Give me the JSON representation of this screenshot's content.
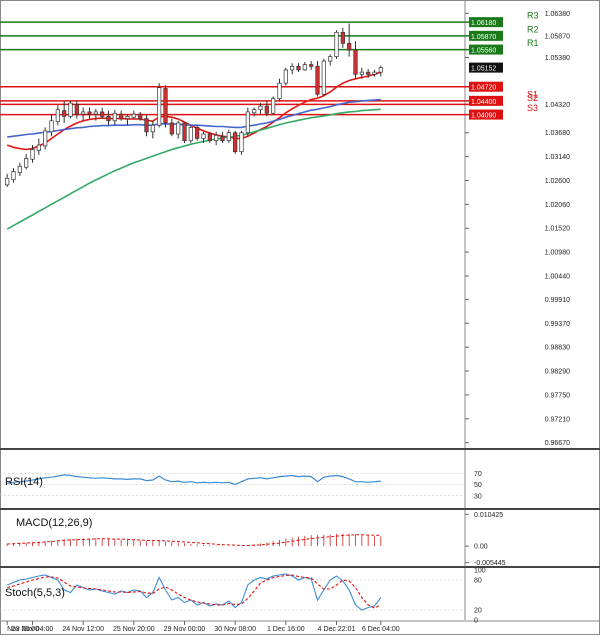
{
  "chart_data": [
    {
      "type": "candlestick",
      "panel": "price",
      "y_ticks": [
        "1.06380",
        "1.05870",
        "1.05380",
        "1.04320",
        "1.03680",
        "1.03140",
        "1.02600",
        "1.02060",
        "1.01520",
        "1.00980",
        "1.00440",
        "0.99910",
        "0.99370",
        "0.98830",
        "0.98290",
        "0.97750",
        "0.97210",
        "0.96670"
      ],
      "ylim": [
        0.9655,
        1.065
      ],
      "current_price": {
        "value": 1.05152,
        "label": "1.05152"
      },
      "pivots": [
        {
          "name": "R3",
          "value": 1.0618,
          "label": "1.06180",
          "color": "#1a7a1a"
        },
        {
          "name": "R2",
          "value": 1.0587,
          "label": "1.05870",
          "color": "#1a7a1a"
        },
        {
          "name": "R1",
          "value": 1.0556,
          "label": "1.05560",
          "color": "#1a7a1a"
        },
        {
          "name": "",
          "value": 1.0472,
          "label": "1.04720",
          "color": "#dd1111"
        },
        {
          "name": "S1",
          "value": 1.044,
          "label": "1.04400",
          "color": "#dd1111"
        },
        {
          "name": "S2",
          "value": 1.0432,
          "label": "",
          "color": "#dd1111"
        },
        {
          "name": "S3",
          "value": 1.0409,
          "label": "1.04090",
          "color": "#dd1111"
        }
      ],
      "candles": [
        [
          1.025,
          1.0275,
          1.0245,
          1.0265
        ],
        [
          1.0262,
          1.0288,
          1.0255,
          1.028
        ],
        [
          1.0278,
          1.03,
          1.027,
          1.0292
        ],
        [
          1.029,
          1.032,
          1.0285,
          1.031
        ],
        [
          1.0308,
          1.034,
          1.03,
          1.033
        ],
        [
          1.0328,
          1.0355,
          1.0318,
          1.034
        ],
        [
          1.0338,
          1.038,
          1.033,
          1.0372
        ],
        [
          1.037,
          1.041,
          1.036,
          1.0395
        ],
        [
          1.0393,
          1.043,
          1.0385,
          1.042
        ],
        [
          1.0418,
          1.044,
          1.039,
          1.0405
        ],
        [
          1.0405,
          1.044,
          1.04,
          1.0435
        ],
        [
          1.0432,
          1.044,
          1.04,
          1.041
        ],
        [
          1.041,
          1.0425,
          1.0395,
          1.0415
        ],
        [
          1.0415,
          1.0425,
          1.04,
          1.041
        ],
        [
          1.041,
          1.0422,
          1.0395,
          1.0415
        ],
        [
          1.0415,
          1.0425,
          1.04,
          1.0405
        ],
        [
          1.0405,
          1.0418,
          1.0385,
          1.0395
        ],
        [
          1.0395,
          1.042,
          1.0385,
          1.0412
        ],
        [
          1.041,
          1.0418,
          1.0395,
          1.04
        ],
        [
          1.04,
          1.041,
          1.0385,
          1.0405
        ],
        [
          1.0403,
          1.0418,
          1.0398,
          1.041
        ],
        [
          1.041,
          1.0415,
          1.0395,
          1.04
        ],
        [
          1.04,
          1.0408,
          1.036,
          1.037
        ],
        [
          1.037,
          1.0395,
          1.0355,
          1.0385
        ],
        [
          1.0385,
          1.048,
          1.038,
          1.047
        ],
        [
          1.0468,
          1.0475,
          1.038,
          1.039
        ],
        [
          1.039,
          1.04,
          1.036,
          1.0365
        ],
        [
          1.0365,
          1.0395,
          1.0355,
          1.039
        ],
        [
          1.039,
          1.0392,
          1.0345,
          1.035
        ],
        [
          1.035,
          1.0385,
          1.0345,
          1.038
        ],
        [
          1.038,
          1.0385,
          1.035,
          1.0355
        ],
        [
          1.0355,
          1.037,
          1.0345,
          1.0365
        ],
        [
          1.0365,
          1.037,
          1.0345,
          1.035
        ],
        [
          1.035,
          1.037,
          1.034,
          1.0362
        ],
        [
          1.036,
          1.037,
          1.0345,
          1.035
        ],
        [
          1.035,
          1.0375,
          1.0345,
          1.0368
        ],
        [
          1.0368,
          1.0372,
          1.032,
          1.0325
        ],
        [
          1.0325,
          1.0372,
          1.0318,
          1.0368
        ],
        [
          1.0368,
          1.0425,
          1.036,
          1.0415
        ],
        [
          1.0413,
          1.0425,
          1.0405,
          1.042
        ],
        [
          1.042,
          1.0435,
          1.041,
          1.0428
        ],
        [
          1.0428,
          1.044,
          1.0405,
          1.0412
        ],
        [
          1.0412,
          1.045,
          1.0408,
          1.0445
        ],
        [
          1.0445,
          1.049,
          1.044,
          1.048
        ],
        [
          1.048,
          1.0515,
          1.0475,
          1.051
        ],
        [
          1.051,
          1.0525,
          1.05,
          1.0518
        ],
        [
          1.0518,
          1.0525,
          1.0505,
          1.051
        ],
        [
          1.051,
          1.0528,
          1.0508,
          1.0522
        ],
        [
          1.0522,
          1.053,
          1.051,
          1.0518
        ],
        [
          1.0518,
          1.053,
          1.045,
          1.0455
        ],
        [
          1.0455,
          1.0535,
          1.045,
          1.053
        ],
        [
          1.053,
          1.0545,
          1.052,
          1.054
        ],
        [
          1.054,
          1.06,
          1.0535,
          1.0595
        ],
        [
          1.0595,
          1.0605,
          1.056,
          1.057
        ],
        [
          1.057,
          1.0615,
          1.054,
          1.0555
        ],
        [
          1.0555,
          1.0575,
          1.049,
          1.05
        ],
        [
          1.05,
          1.0515,
          1.049,
          1.0505
        ],
        [
          1.0505,
          1.0512,
          1.0492,
          1.05
        ],
        [
          1.05,
          1.051,
          1.0495,
          1.0505
        ],
        [
          1.0505,
          1.052,
          1.0495,
          1.0515
        ]
      ],
      "ma": [
        {
          "color": "#e31515",
          "values": [
            1.034,
            1.0335,
            1.0332,
            1.033,
            1.0332,
            1.0338,
            1.0345,
            1.0355,
            1.0365,
            1.0375,
            1.0383,
            1.039,
            1.0395,
            1.0398,
            1.04,
            1.0401,
            1.04,
            1.04,
            1.04,
            1.0399,
            1.0399,
            1.0399,
            1.0396,
            1.0394,
            1.0404,
            1.0405,
            1.0403,
            1.0399,
            1.0392,
            1.0385,
            1.0378,
            1.0372,
            1.0367,
            1.0363,
            1.036,
            1.0358,
            1.0355,
            1.0355,
            1.036,
            1.0367,
            1.0375,
            1.0382,
            1.0392,
            1.0402,
            1.0413,
            1.0422,
            1.043,
            1.0437,
            1.0443,
            1.0446,
            1.0452,
            1.046,
            1.0471,
            1.048,
            1.0486,
            1.049,
            1.0493,
            1.0496,
            1.05,
            1.0505
          ]
        },
        {
          "color": "#4466cc",
          "values": [
            1.0358,
            1.036,
            1.0362,
            1.0364,
            1.0365,
            1.0367,
            1.0369,
            1.0371,
            1.0373,
            1.0375,
            1.0377,
            1.0379,
            1.038,
            1.0382,
            1.0383,
            1.0384,
            1.0384,
            1.0385,
            1.0385,
            1.0385,
            1.0386,
            1.0386,
            1.0385,
            1.0385,
            1.0388,
            1.0388,
            1.0388,
            1.0387,
            1.0386,
            1.0385,
            1.0385,
            1.0384,
            1.0383,
            1.0382,
            1.0382,
            1.0381,
            1.038,
            1.038,
            1.0383,
            1.0385,
            1.0388,
            1.039,
            1.0394,
            1.0398,
            1.0403,
            1.0407,
            1.0411,
            1.0415,
            1.0419,
            1.0421,
            1.0424,
            1.0427,
            1.0431,
            1.0434,
            1.0437,
            1.0438,
            1.044,
            1.0441,
            1.0442,
            1.0443
          ]
        },
        {
          "color": "#33aa66",
          "values": [
            1.015,
            1.0158,
            1.0166,
            1.0174,
            1.0182,
            1.019,
            1.0198,
            1.0206,
            1.0214,
            1.0222,
            1.023,
            1.0238,
            1.0246,
            1.0254,
            1.0261,
            1.0268,
            1.0275,
            1.0282,
            1.0288,
            1.0294,
            1.03,
            1.0305,
            1.031,
            1.0315,
            1.032,
            1.0325,
            1.033,
            1.0334,
            1.0338,
            1.0342,
            1.0345,
            1.0348,
            1.0351,
            1.0354,
            1.0356,
            1.0358,
            1.036,
            1.0362,
            1.0366,
            1.037,
            1.0374,
            1.0378,
            1.0382,
            1.0386,
            1.039,
            1.0393,
            1.0396,
            1.0399,
            1.0402,
            1.0404,
            1.0406,
            1.0408,
            1.0411,
            1.0413,
            1.0415,
            1.0416,
            1.0418,
            1.0419,
            1.042,
            1.0421
          ]
        }
      ]
    },
    {
      "type": "line",
      "panel": "rsi",
      "title": "RSI(14)",
      "y_ticks": [
        "70",
        "50",
        "30"
      ],
      "ylim": [
        10,
        90
      ],
      "series": [
        {
          "color": "#3a8bd6",
          "values": [
            52,
            54,
            55,
            56,
            58,
            60,
            62,
            63,
            65,
            67,
            66,
            64,
            63,
            62,
            61,
            62,
            61,
            60,
            60,
            59,
            60,
            60,
            57,
            58,
            65,
            58,
            55,
            56,
            54,
            55,
            53,
            54,
            53,
            54,
            53,
            54,
            50,
            55,
            60,
            61,
            62,
            60,
            62,
            64,
            65,
            66,
            64,
            65,
            64,
            55,
            63,
            65,
            66,
            64,
            60,
            55,
            55,
            54,
            55,
            56
          ]
        }
      ]
    },
    {
      "type": "bar",
      "panel": "macd",
      "title": "MACD(12,26,9)",
      "y_ticks": [
        "0.010425",
        "0.00",
        "-0.005445"
      ],
      "ylim": [
        -0.0062,
        0.0112
      ],
      "histogram": [
        0.0008,
        0.0009,
        0.001,
        0.0011,
        0.0012,
        0.0014,
        0.0016,
        0.0018,
        0.002,
        0.0022,
        0.0023,
        0.0024,
        0.0025,
        0.0025,
        0.0025,
        0.0024,
        0.0023,
        0.0022,
        0.0021,
        0.002,
        0.0019,
        0.0018,
        0.0016,
        0.0015,
        0.0017,
        0.0016,
        0.0014,
        0.0012,
        0.001,
        0.0008,
        0.0006,
        0.0004,
        0.0003,
        0.0002,
        0.0001,
        0.0,
        -0.0001,
        0.0,
        0.0003,
        0.0006,
        0.0009,
        0.0012,
        0.0016,
        0.002,
        0.0024,
        0.0028,
        0.0031,
        0.0034,
        0.0036,
        0.0036,
        0.0037,
        0.0038,
        0.004,
        0.0041,
        0.0041,
        0.0039,
        0.0037,
        0.0035,
        0.0033,
        0.0032
      ],
      "signal": {
        "color": "#dd1111",
        "values": [
          0.0007,
          0.0008,
          0.0009,
          0.001,
          0.0011,
          0.0012,
          0.0014,
          0.0015,
          0.0017,
          0.0019,
          0.002,
          0.0021,
          0.0022,
          0.0023,
          0.0024,
          0.0024,
          0.0024,
          0.0023,
          0.0023,
          0.0022,
          0.0021,
          0.002,
          0.0019,
          0.0018,
          0.0018,
          0.0017,
          0.0016,
          0.0015,
          0.0014,
          0.0012,
          0.0011,
          0.0009,
          0.0008,
          0.0006,
          0.0005,
          0.0004,
          0.0003,
          0.0002,
          0.0002,
          0.0003,
          0.0004,
          0.0006,
          0.0008,
          0.001,
          0.0013,
          0.0016,
          0.0019,
          0.0022,
          0.0025,
          0.0027,
          0.0029,
          0.0031,
          0.0033,
          0.0035,
          0.0036,
          0.0037,
          0.0037,
          0.0036,
          0.0036,
          0.0035
        ]
      },
      "hist_color": "#cc2222"
    },
    {
      "type": "line",
      "panel": "stoch",
      "title": "Stoch(5,5,3)",
      "y_ticks": [
        "100",
        "80",
        "20",
        "0"
      ],
      "ylim": [
        0,
        100
      ],
      "series": [
        {
          "color": "#3a8bd6",
          "dash": false,
          "values": [
            70,
            75,
            80,
            82,
            85,
            88,
            90,
            85,
            80,
            60,
            55,
            70,
            65,
            60,
            62,
            58,
            55,
            52,
            58,
            55,
            60,
            58,
            45,
            55,
            85,
            60,
            40,
            45,
            35,
            40,
            30,
            35,
            28,
            32,
            30,
            38,
            25,
            35,
            70,
            80,
            85,
            82,
            88,
            90,
            92,
            88,
            80,
            85,
            82,
            40,
            60,
            80,
            88,
            78,
            60,
            30,
            20,
            25,
            28,
            45
          ]
        },
        {
          "color": "#dd1111",
          "dash": true,
          "values": [
            65,
            68,
            72,
            76,
            80,
            83,
            86,
            86,
            84,
            76,
            68,
            66,
            64,
            63,
            62,
            60,
            58,
            56,
            56,
            55,
            56,
            57,
            54,
            53,
            62,
            66,
            60,
            52,
            45,
            40,
            36,
            34,
            32,
            30,
            30,
            33,
            31,
            32,
            43,
            58,
            74,
            80,
            85,
            87,
            89,
            90,
            87,
            85,
            84,
            72,
            62,
            62,
            70,
            80,
            78,
            65,
            45,
            30,
            24,
            30
          ]
        }
      ]
    }
  ],
  "x_axis": {
    "labels": [
      {
        "text": "Nov 20:00",
        "index": 0
      },
      {
        "text": "23 Nov 04:00",
        "index": 4
      },
      {
        "text": "24 Nov 12:00",
        "index": 12
      },
      {
        "text": "25 Nov 20:00",
        "index": 20
      },
      {
        "text": "29 Nov 00:00",
        "index": 28
      },
      {
        "text": "30 Nov 08:00",
        "index": 36
      },
      {
        "text": "1 Dec 16:00",
        "index": 44
      },
      {
        "text": "4 Dec 22:01",
        "index": 52
      },
      {
        "text": "6 Dec 04:00",
        "index": 59
      }
    ]
  },
  "colors": {
    "bull_fill": "#ffffff",
    "bear_fill": "#d32f2f",
    "candle_line": "#333333",
    "axis_text": "#222222",
    "grid": "#bbbbbb"
  }
}
